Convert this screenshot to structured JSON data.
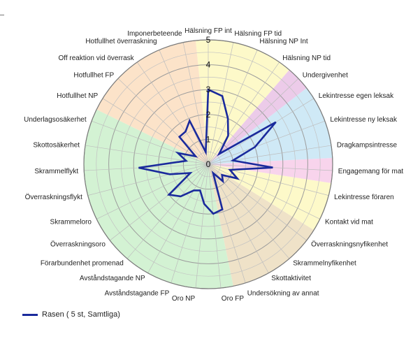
{
  "chart_data": {
    "type": "radar",
    "title": "",
    "r_range": [
      0,
      5
    ],
    "r_ticks": [
      "0",
      "1",
      "2",
      "3",
      "4",
      "5"
    ],
    "grid": true,
    "legend_position": "bottom-left",
    "categories": [
      "Hälsning FP int",
      "Hälsning FP tid",
      "Hälsning NP Int",
      "Hälsning NP tid",
      "Undergivenhet",
      "Lekintresse egen leksak",
      "Lekintresse ny leksak",
      "Dragkampsintresse",
      "Engagemang för mat",
      "Lekintresse föraren",
      "Kontakt vid mat",
      "Överraskningsnyfikenhet",
      "Skrammelnyfikenhet",
      "Skottaktivitet",
      "Undersökning av annat",
      "Oro FP",
      "Oro NP",
      "Avståndstagande FP",
      "Avståndstagande NP",
      "Förarbundenhet promenad",
      "Överraskningsoro",
      "Skrammeloro",
      "Överraskningsflykt",
      "Skrammelflykt",
      "Skottosäkerhet",
      "Underlagsosäkerhet",
      "Hotfullhet NP",
      "Hotfullhet FP",
      "Off reaktion vid överrask",
      "Hotfullhet överraskning",
      "Imponerbeteende"
    ],
    "series": [
      {
        "name": "Rasen ( 5 st, Samtliga)",
        "color": "#1a2a9c",
        "values": [
          3.0,
          2.8,
          2.0,
          1.4,
          0.6,
          3.2,
          2.0,
          1.0,
          2.6,
          0.9,
          1.3,
          0.7,
          0.9,
          0.4,
          1.9,
          2.0,
          1.6,
          1.1,
          1.2,
          1.7,
          2.0,
          0.8,
          1.6,
          2.8,
          0.9,
          1.3,
          0.6,
          1.6,
          1.6,
          1.9,
          0.5
        ]
      }
    ],
    "bands": [
      {
        "group": "halsning",
        "from": 0,
        "to": 3,
        "color": "#fdf9c9"
      },
      {
        "group": "undergivenhet",
        "from": 4,
        "to": 4,
        "color": "#eccbe9"
      },
      {
        "group": "lek",
        "from": 5,
        "to": 7,
        "color": "#cfe9f6"
      },
      {
        "group": "mat",
        "from": 8,
        "to": 8,
        "color": "#f8d4ec"
      },
      {
        "group": "kontakt",
        "from": 9,
        "to": 10,
        "color": "#fdf9c9"
      },
      {
        "group": "nyfikenhet",
        "from": 11,
        "to": 14,
        "color": "#efe2c8"
      },
      {
        "group": "oro",
        "from": 15,
        "to": 25,
        "color": "#d3f2d3"
      },
      {
        "group": "hotfullhet",
        "from": 26,
        "to": 30,
        "color": "#fce3c9"
      }
    ]
  },
  "legend": {
    "label": "Rasen ( 5 st, Samtliga)"
  }
}
